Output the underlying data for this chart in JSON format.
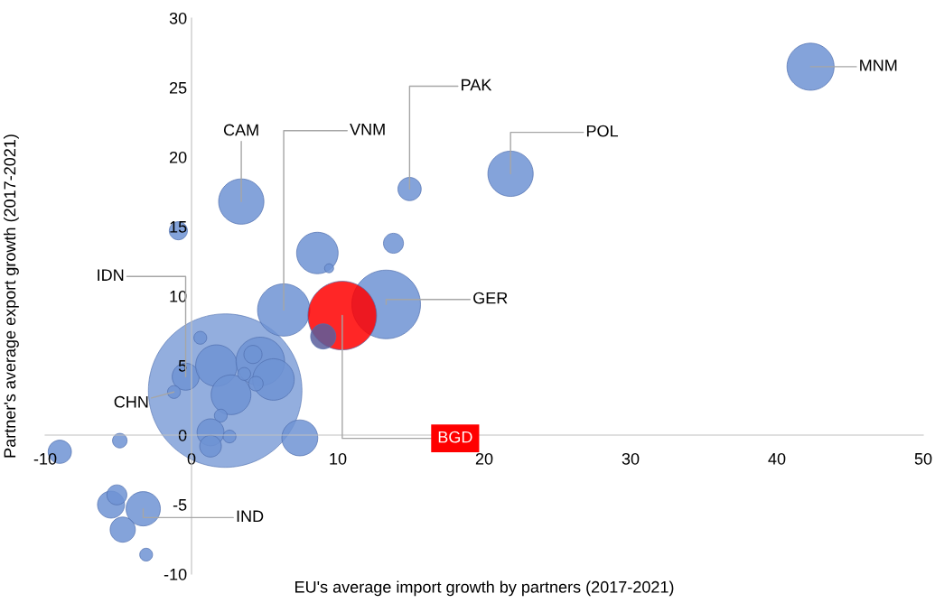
{
  "chart_data": {
    "type": "bubble",
    "xlabel": "EU's average import growth by partners (2017-2021)",
    "ylabel": "Partner's average export growth (2017-2021)",
    "xlim": [
      -10,
      50
    ],
    "xticks": [
      -10,
      0,
      10,
      20,
      30,
      40,
      50
    ],
    "ylim": [
      -10,
      30
    ],
    "yticks": [
      -10,
      -5,
      0,
      5,
      10,
      15,
      20,
      25,
      30
    ],
    "grid": false,
    "relative": false,
    "series": [
      {
        "color": "#6f93d3",
        "x": [
          2.3,
          42.3,
          21.8,
          14.9,
          3.4,
          -0.9,
          8.6,
          9.4,
          13.8,
          6.3,
          13.3,
          10.3,
          9.0,
          -0.4,
          -1.2,
          0.6,
          1.7,
          2.7,
          4.7,
          5.6,
          4.2,
          3.6,
          4.4,
          2.0,
          1.3,
          1.3,
          2.6,
          7.4,
          -9.0,
          -4.9,
          -5.5,
          -5.1,
          -3.3,
          -4.7,
          -3.1
        ],
        "values": [
          3.2,
          26.5,
          18.8,
          17.7,
          16.8,
          14.7,
          13.1,
          12.0,
          13.8,
          9.0,
          9.4,
          8.6,
          7.1,
          4.2,
          3.1,
          7.0,
          5.0,
          2.9,
          5.3,
          4.0,
          5.8,
          4.4,
          3.7,
          1.4,
          0.2,
          -0.8,
          -0.1,
          -0.2,
          -1.2,
          -0.4,
          -5.0,
          -4.3,
          -5.3,
          -6.8,
          -8.6
        ],
        "sizes": [
          1,
          0.094,
          0.087,
          0.023,
          0.087,
          0.014,
          0.073,
          0.0035,
          0.017,
          0.116,
          0.2,
          0.2,
          0.027,
          0.031,
          0.007,
          0.007,
          0.073,
          0.067,
          0.1,
          0.073,
          0.014,
          0.007,
          0.009,
          0.007,
          0.031,
          0.02,
          0.007,
          0.055,
          0.023,
          0.009,
          0.031,
          0.017,
          0.05,
          0.027,
          0.007
        ],
        "colors": [
          "#6f93d3",
          "#6f93d3",
          "#6f93d3",
          "#6f93d3",
          "#6f93d3",
          "#6f93d3",
          "#6f93d3",
          "#6f93d3",
          "#6f93d3",
          "#6f93d3",
          "#6f93d3",
          "#ff0000",
          "#5a5e9c",
          "#6f93d3",
          "#6f93d3",
          "#6f93d3",
          "#6f93d3",
          "#6f93d3",
          "#6f93d3",
          "#6f93d3",
          "#6f93d3",
          "#6f93d3",
          "#6f93d3",
          "#6f93d3",
          "#6f93d3",
          "#6f93d3",
          "#6f93d3",
          "#6f93d3",
          "#6f93d3",
          "#6f93d3",
          "#6f93d3",
          "#6f93d3",
          "#6f93d3",
          "#6f93d3",
          "#6f93d3"
        ]
      }
    ],
    "annotations": [
      {
        "text": "MNM",
        "x": 42.3,
        "y": 26.5
      },
      {
        "text": "POL",
        "x": 21.8,
        "y": 18.8
      },
      {
        "text": "PAK",
        "x": 14.9,
        "y": 17.7
      },
      {
        "text": "CAM",
        "x": 3.4,
        "y": 16.8
      },
      {
        "text": "VNM",
        "x": 6.3,
        "y": 9.0
      },
      {
        "text": "GER",
        "x": 13.3,
        "y": 9.4
      },
      {
        "text": "BGD",
        "x": 10.3,
        "y": 8.6
      },
      {
        "text": "IDN",
        "x": -0.4,
        "y": 4.2
      },
      {
        "text": "CHN",
        "x": -1.2,
        "y": 3.1
      },
      {
        "text": "IND",
        "x": -3.3,
        "y": -5.3
      }
    ]
  }
}
